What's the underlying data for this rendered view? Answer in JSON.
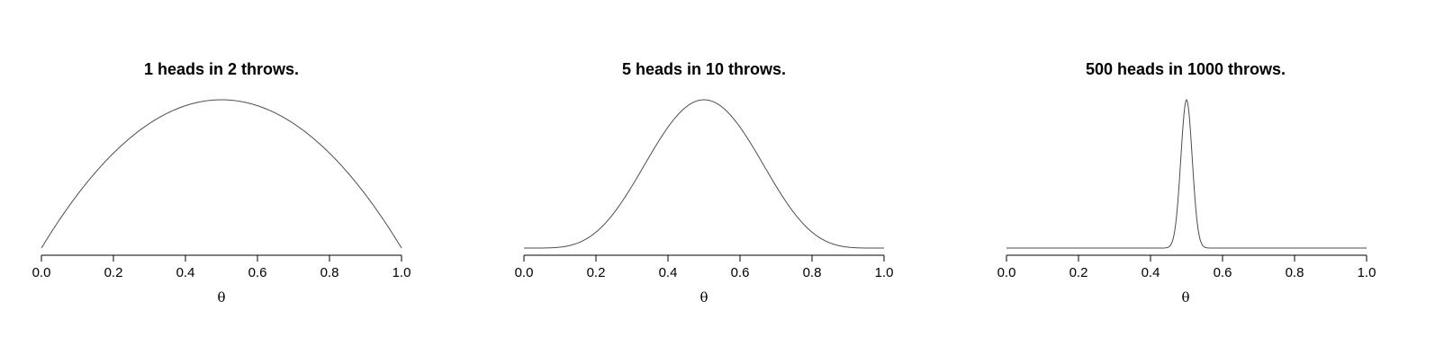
{
  "chart_data": [
    {
      "type": "line",
      "title": "1 heads in 2 throws.",
      "xlabel": "θ",
      "ylabel": "",
      "xlim": [
        0.0,
        1.0
      ],
      "x_ticks": [
        "0.0",
        "0.2",
        "0.4",
        "0.6",
        "0.8",
        "1.0"
      ],
      "heads": 1,
      "throws": 2,
      "y_axis": "hidden",
      "line_color": "#4d4d4d",
      "series": [
        {
          "x": [
            0.0,
            0.05,
            0.1,
            0.15,
            0.2,
            0.25,
            0.3,
            0.35,
            0.4,
            0.45,
            0.5,
            0.55,
            0.6,
            0.65,
            0.7,
            0.75,
            0.8,
            0.85,
            0.9,
            0.95,
            1.0
          ],
          "values": [
            0.0,
            0.19,
            0.36,
            0.51,
            0.64,
            0.75,
            0.84,
            0.91,
            0.96,
            0.99,
            1.0,
            0.99,
            0.96,
            0.91,
            0.84,
            0.75,
            0.64,
            0.51,
            0.36,
            0.19,
            0.0
          ]
        }
      ]
    },
    {
      "type": "line",
      "title": "5 heads in 10 throws.",
      "xlabel": "θ",
      "ylabel": "",
      "xlim": [
        0.0,
        1.0
      ],
      "x_ticks": [
        "0.0",
        "0.2",
        "0.4",
        "0.6",
        "0.8",
        "1.0"
      ],
      "heads": 5,
      "throws": 10,
      "y_axis": "hidden",
      "line_color": "#4d4d4d",
      "series": [
        {
          "x": [
            0.0,
            0.05,
            0.1,
            0.15,
            0.2,
            0.25,
            0.3,
            0.35,
            0.4,
            0.45,
            0.5,
            0.55,
            0.6,
            0.65,
            0.7,
            0.75,
            0.8,
            0.85,
            0.9,
            0.95,
            1.0
          ],
          "values": [
            0.0,
            0.0,
            0.01,
            0.05,
            0.11,
            0.24,
            0.42,
            0.62,
            0.82,
            0.95,
            1.0,
            0.95,
            0.82,
            0.62,
            0.42,
            0.24,
            0.11,
            0.05,
            0.01,
            0.0,
            0.0
          ]
        }
      ]
    },
    {
      "type": "line",
      "title": "500 heads in 1000 throws.",
      "xlabel": "θ",
      "ylabel": "",
      "xlim": [
        0.0,
        1.0
      ],
      "x_ticks": [
        "0.0",
        "0.2",
        "0.4",
        "0.6",
        "0.8",
        "1.0"
      ],
      "heads": 500,
      "throws": 1000,
      "y_axis": "hidden",
      "line_color": "#4d4d4d",
      "series": [
        {
          "x": [
            0.0,
            0.45,
            0.46,
            0.47,
            0.48,
            0.49,
            0.5,
            0.51,
            0.52,
            0.53,
            0.54,
            0.55,
            1.0
          ],
          "values": [
            0.0,
            0.0,
            0.04,
            0.16,
            0.44,
            0.82,
            1.0,
            0.82,
            0.44,
            0.16,
            0.04,
            0.0,
            0.0
          ]
        }
      ]
    }
  ]
}
